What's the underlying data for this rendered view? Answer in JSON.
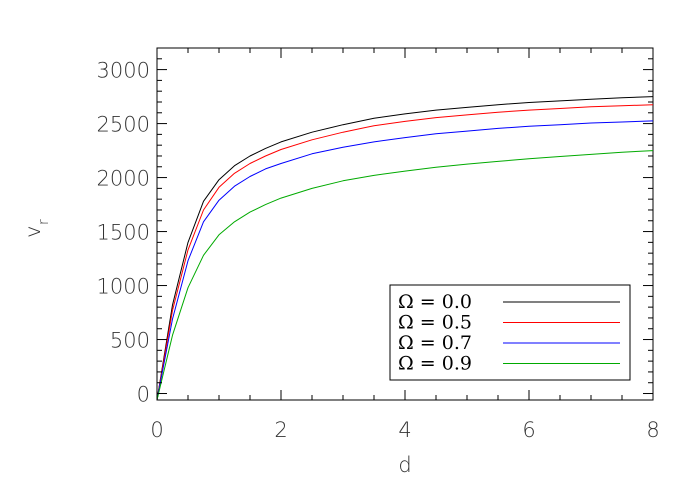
{
  "chart_data": {
    "type": "line",
    "title": "",
    "xlabel": "d",
    "ylabel": "v",
    "ylabel_subscript": "r",
    "xlim": [
      0,
      8
    ],
    "ylim": [
      -60,
      3200
    ],
    "xticks": [
      0,
      2,
      4,
      6,
      8
    ],
    "xtick_labels": [
      "0",
      "2",
      "4",
      "6",
      "8"
    ],
    "yticks": [
      0,
      500,
      1000,
      1500,
      2000,
      2500,
      3000
    ],
    "ytick_labels": [
      "0",
      "500",
      "1000",
      "1500",
      "2000",
      "2500",
      "3000"
    ],
    "grid": false,
    "legend_position": "bottom-right",
    "x": [
      0.0,
      0.25,
      0.5,
      0.75,
      1.0,
      1.25,
      1.5,
      1.75,
      2.0,
      2.5,
      3.0,
      3.5,
      4.0,
      4.5,
      5.0,
      5.5,
      6.0,
      6.5,
      7.0,
      7.5,
      8.0
    ],
    "series": [
      {
        "name": "Ω = 0.0",
        "color": "#000000",
        "values": [
          -60,
          820,
          1400,
          1780,
          1980,
          2110,
          2200,
          2270,
          2330,
          2420,
          2490,
          2550,
          2590,
          2625,
          2650,
          2675,
          2695,
          2710,
          2725,
          2740,
          2750
        ]
      },
      {
        "name": "Ω = 0.5",
        "color": "#ff0000",
        "values": [
          -60,
          770,
          1330,
          1700,
          1910,
          2040,
          2130,
          2200,
          2260,
          2350,
          2420,
          2480,
          2520,
          2555,
          2580,
          2605,
          2625,
          2640,
          2655,
          2665,
          2675
        ]
      },
      {
        "name": "Ω = 0.7",
        "color": "#0000ff",
        "values": [
          -60,
          690,
          1230,
          1590,
          1790,
          1920,
          2010,
          2080,
          2130,
          2220,
          2280,
          2330,
          2370,
          2405,
          2430,
          2455,
          2475,
          2490,
          2505,
          2515,
          2525
        ]
      },
      {
        "name": "Ω = 0.9",
        "color": "#00aa00",
        "values": [
          -60,
          540,
          980,
          1280,
          1470,
          1590,
          1680,
          1750,
          1810,
          1900,
          1970,
          2020,
          2060,
          2095,
          2125,
          2150,
          2175,
          2195,
          2215,
          2235,
          2250
        ]
      }
    ]
  }
}
